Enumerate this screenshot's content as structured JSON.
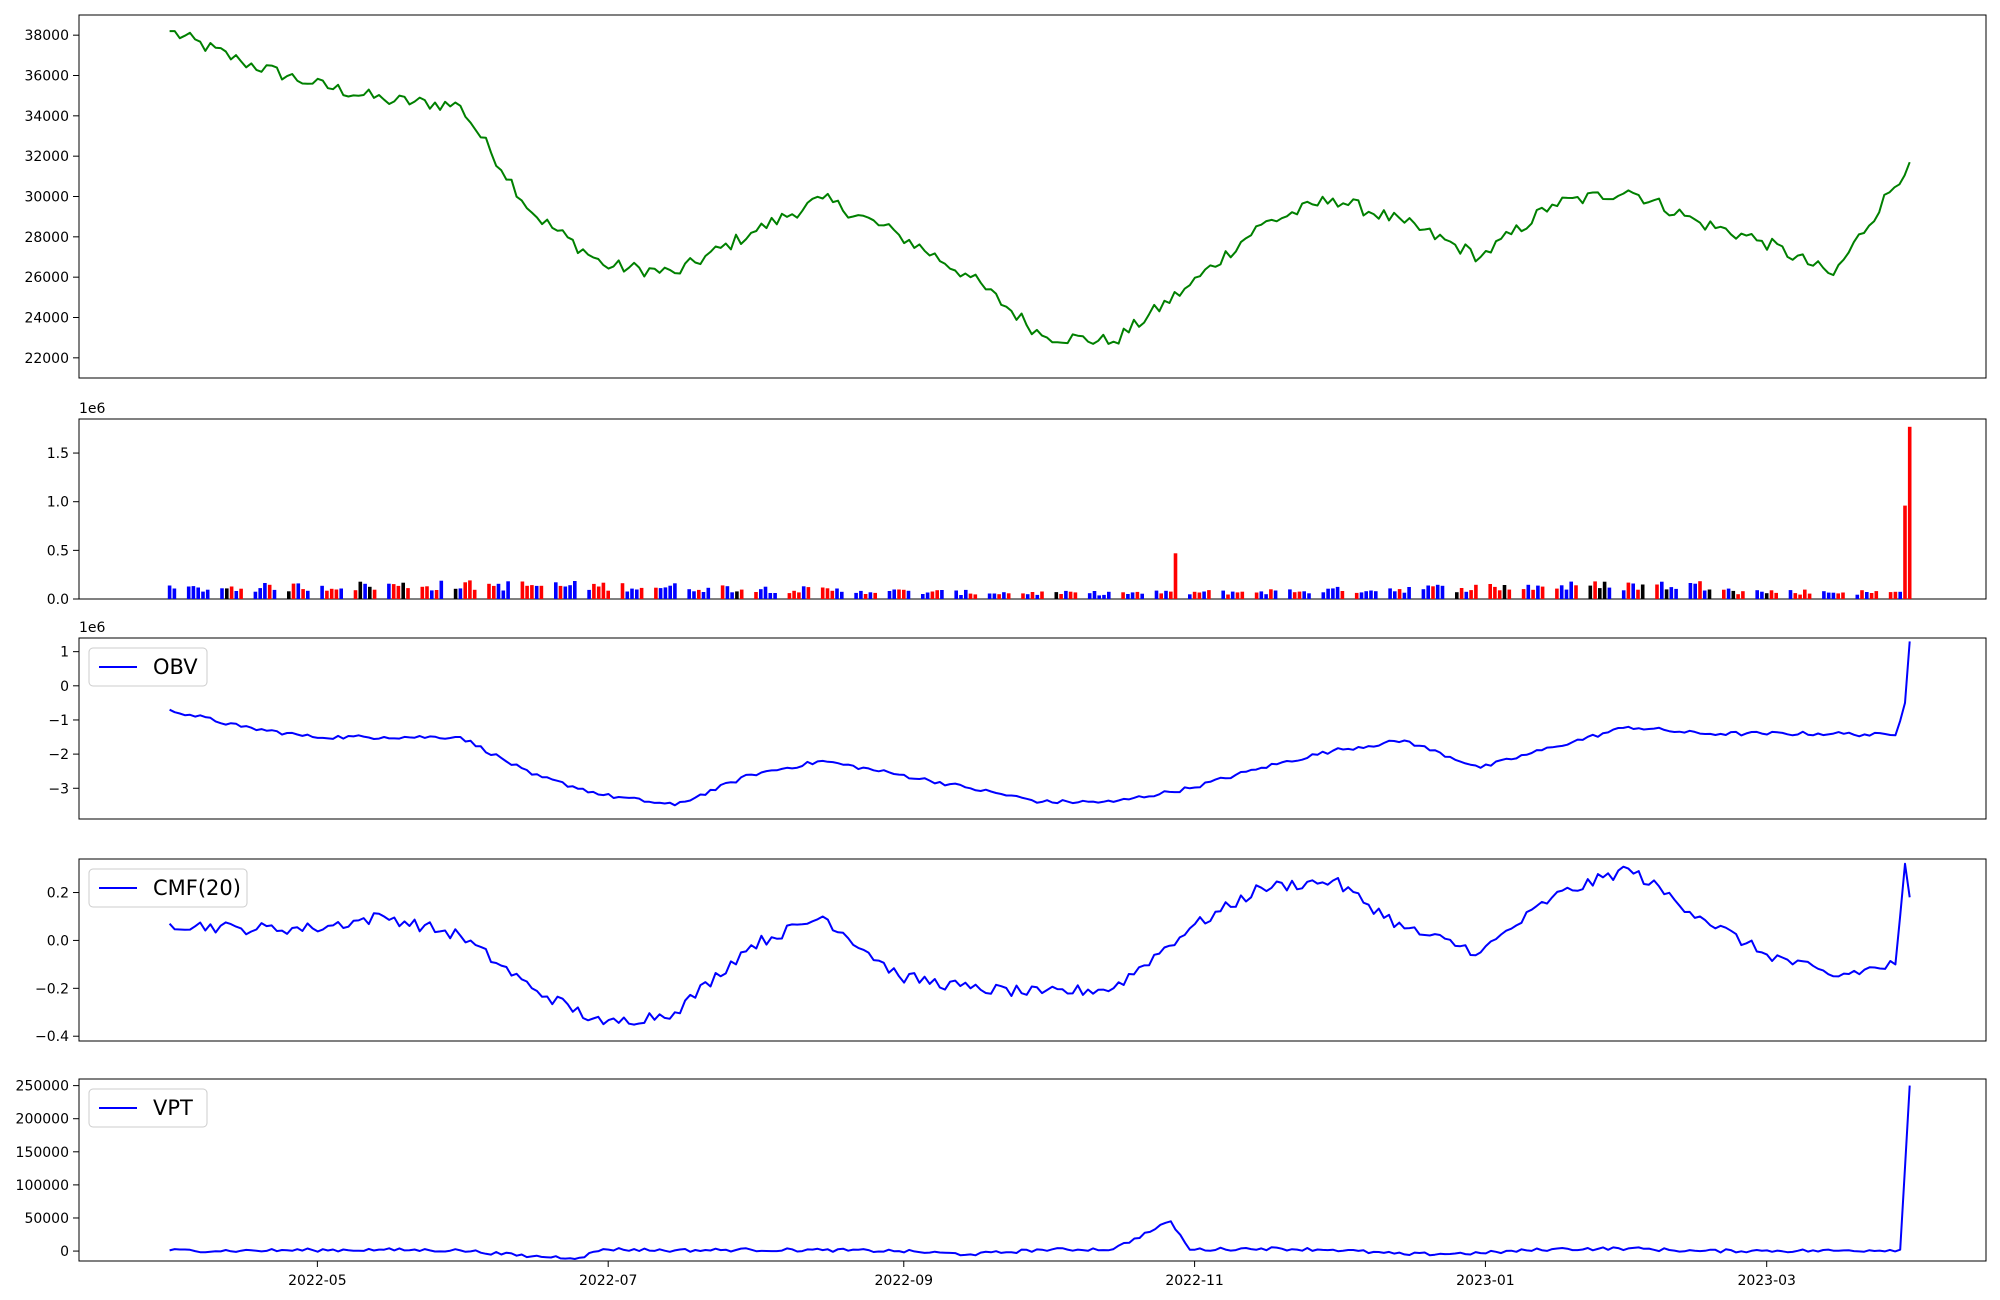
{
  "chart_data": [
    {
      "type": "line",
      "title": "",
      "color": "#008000",
      "ylim": [
        21000,
        39000
      ],
      "yticks": [
        22000,
        24000,
        26000,
        28000,
        30000,
        32000,
        34000,
        36000,
        38000
      ],
      "ytick_labels": [
        "22000",
        "24000",
        "26000",
        "28000",
        "30000",
        "32000",
        "34000",
        "36000",
        "38000"
      ],
      "show_xticks": false,
      "x": [
        "2022-03-31",
        "2022-04-15",
        "2022-04-30",
        "2022-05-15",
        "2022-05-31",
        "2022-06-15",
        "2022-06-30",
        "2022-07-15",
        "2022-07-31",
        "2022-08-15",
        "2022-08-31",
        "2022-09-15",
        "2022-09-30",
        "2022-10-15",
        "2022-10-31",
        "2022-11-15",
        "2022-11-30",
        "2022-12-15",
        "2022-12-31",
        "2023-01-15",
        "2023-01-31",
        "2023-02-15",
        "2023-02-28",
        "2023-03-15",
        "2023-03-31"
      ],
      "series": [
        {
          "values": [
            38200,
            36700,
            35600,
            34800,
            34500,
            29200,
            26600,
            26200,
            28200,
            29900,
            28100,
            26000,
            23100,
            22800,
            25600,
            28600,
            29900,
            28700,
            27000,
            29600,
            30300,
            28700,
            27800,
            26100,
            31700
          ]
        }
      ]
    },
    {
      "type": "bar",
      "title": "",
      "multiplier_label": "1e6",
      "ylim": [
        0,
        1.85
      ],
      "yticks": [
        0.0,
        0.5,
        1.0,
        1.5
      ],
      "ytick_labels": [
        "0.0",
        "0.5",
        "1.0",
        "1.5"
      ],
      "colors": {
        "up": "#ff0000",
        "down": "#0000ff",
        "flat": "#000000"
      },
      "show_xticks": false,
      "baseline_value": 0.1,
      "spikes": [
        {
          "date": "2022-10-28",
          "value": 0.47
        },
        {
          "date": "2023-03-30",
          "value": 0.96
        },
        {
          "date": "2023-03-31",
          "value": 1.77
        }
      ]
    },
    {
      "type": "line",
      "title": "",
      "multiplier_label": "1e6",
      "legend": "OBV",
      "legend_position": "upper-left",
      "color": "#0000ff",
      "ylim": [
        -3.9,
        1.4
      ],
      "yticks": [
        -3,
        -2,
        -1,
        0,
        1
      ],
      "ytick_labels": [
        "−3",
        "−2",
        "−1",
        "0",
        "1"
      ],
      "show_xticks": false,
      "x": [
        "2022-03-31",
        "2022-04-15",
        "2022-04-30",
        "2022-05-15",
        "2022-05-31",
        "2022-06-15",
        "2022-06-30",
        "2022-07-15",
        "2022-07-31",
        "2022-08-15",
        "2022-08-31",
        "2022-09-15",
        "2022-09-30",
        "2022-10-15",
        "2022-10-31",
        "2022-11-15",
        "2022-11-30",
        "2022-12-15",
        "2022-12-31",
        "2023-01-15",
        "2023-01-31",
        "2023-02-15",
        "2023-02-28",
        "2023-03-15",
        "2023-03-28",
        "2023-03-30",
        "2023-03-31"
      ],
      "series": [
        {
          "name": "OBV",
          "values": [
            -0.7,
            -1.2,
            -1.5,
            -1.5,
            -1.5,
            -2.6,
            -3.2,
            -3.5,
            -2.6,
            -2.2,
            -2.6,
            -3.0,
            -3.4,
            -3.4,
            -3.0,
            -2.4,
            -1.9,
            -1.6,
            -2.4,
            -1.8,
            -1.2,
            -1.4,
            -1.4,
            -1.4,
            -1.45,
            -0.5,
            1.3
          ]
        }
      ]
    },
    {
      "type": "line",
      "title": "",
      "legend": "CMF(20)",
      "legend_position": "upper-left",
      "color": "#0000ff",
      "ylim": [
        -0.42,
        0.34
      ],
      "yticks": [
        -0.4,
        -0.2,
        0.0,
        0.2
      ],
      "ytick_labels": [
        "−0.4",
        "−0.2",
        "0.0",
        "0.2"
      ],
      "show_xticks": false,
      "x": [
        "2022-03-31",
        "2022-04-15",
        "2022-04-30",
        "2022-05-15",
        "2022-05-31",
        "2022-06-15",
        "2022-06-30",
        "2022-07-15",
        "2022-07-31",
        "2022-08-15",
        "2022-08-31",
        "2022-09-15",
        "2022-09-30",
        "2022-10-15",
        "2022-10-31",
        "2022-11-15",
        "2022-11-30",
        "2022-12-15",
        "2022-12-31",
        "2023-01-15",
        "2023-01-31",
        "2023-02-15",
        "2023-02-28",
        "2023-03-15",
        "2023-03-28",
        "2023-03-30",
        "2023-03-31"
      ],
      "series": [
        {
          "name": "CMF(20)",
          "values": [
            0.07,
            0.05,
            0.05,
            0.1,
            0.02,
            -0.2,
            -0.35,
            -0.3,
            -0.02,
            0.1,
            -0.15,
            -0.2,
            -0.22,
            -0.2,
            0.05,
            0.22,
            0.25,
            0.05,
            -0.05,
            0.18,
            0.3,
            0.1,
            -0.05,
            -0.15,
            -0.1,
            0.32,
            0.18
          ]
        }
      ]
    },
    {
      "type": "line",
      "title": "",
      "legend": "VPT",
      "legend_position": "upper-left",
      "color": "#0000ff",
      "ylim": [
        -15000,
        260000
      ],
      "yticks": [
        0,
        50000,
        100000,
        150000,
        200000,
        250000
      ],
      "ytick_labels": [
        "0",
        "50000",
        "100000",
        "150000",
        "200000",
        "250000"
      ],
      "show_xticks": true,
      "xtick_dates": [
        "2022-05-01",
        "2022-07-01",
        "2022-09-01",
        "2022-11-01",
        "2023-01-01",
        "2023-03-01"
      ],
      "xtick_labels": [
        "2022-05",
        "2022-07",
        "2022-09",
        "2022-11",
        "2023-01",
        "2023-03"
      ],
      "x": [
        "2022-03-31",
        "2022-04-15",
        "2022-04-30",
        "2022-05-15",
        "2022-05-31",
        "2022-06-15",
        "2022-06-25",
        "2022-06-30",
        "2022-07-15",
        "2022-07-31",
        "2022-08-15",
        "2022-08-31",
        "2022-09-15",
        "2022-09-30",
        "2022-10-15",
        "2022-10-27",
        "2022-10-31",
        "2022-11-15",
        "2022-11-30",
        "2022-12-15",
        "2022-12-31",
        "2023-01-15",
        "2023-01-31",
        "2023-02-15",
        "2023-02-28",
        "2023-03-15",
        "2023-03-29",
        "2023-03-31"
      ],
      "series": [
        {
          "name": "VPT",
          "values": [
            1000,
            500,
            1500,
            2000,
            1000,
            -8000,
            -10000,
            3000,
            1000,
            2000,
            1500,
            0,
            -5000,
            2000,
            3000,
            45000,
            2000,
            4000,
            2000,
            -5000,
            -3000,
            3000,
            4000,
            0,
            500,
            500,
            2000,
            250000
          ]
        }
      ]
    }
  ]
}
